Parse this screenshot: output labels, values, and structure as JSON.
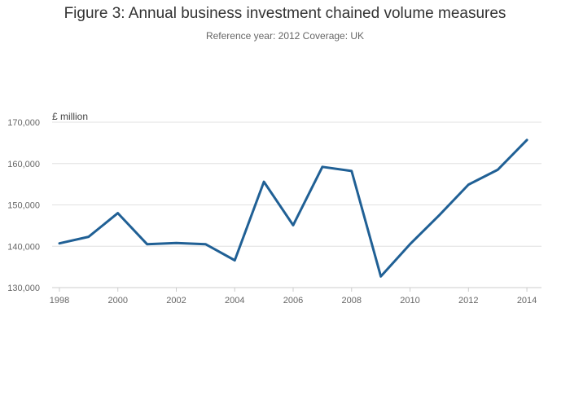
{
  "chart_data": {
    "type": "line",
    "title": "Figure 3: Annual business investment chained volume measures",
    "subtitle": "Reference year: 2012 Coverage: UK",
    "ylabel": "£ million",
    "xlabel": "",
    "x": [
      1998,
      1999,
      2000,
      2001,
      2002,
      2003,
      2004,
      2005,
      2006,
      2007,
      2008,
      2009,
      2010,
      2011,
      2012,
      2013,
      2014
    ],
    "series": [
      {
        "name": "Business investment",
        "values": [
          140700,
          142300,
          148000,
          140500,
          140800,
          140500,
          136600,
          155600,
          145100,
          159200,
          158200,
          132700,
          140500,
          147500,
          154900,
          158500,
          165700
        ]
      }
    ],
    "xticks": [
      1998,
      2000,
      2002,
      2004,
      2006,
      2008,
      2010,
      2012,
      2014
    ],
    "xtick_labels": [
      "1998",
      "2000",
      "2002",
      "2004",
      "2006",
      "2008",
      "2010",
      "2012",
      "2014"
    ],
    "yticks": [
      130000,
      140000,
      150000,
      160000,
      170000
    ],
    "ytick_labels": [
      "130,000",
      "140,000",
      "150,000",
      "160,000",
      "170,000"
    ],
    "xlim": [
      1997.75,
      2014.5
    ],
    "ylim": [
      130000,
      170000
    ],
    "grid": true,
    "line_color": "#206095"
  }
}
